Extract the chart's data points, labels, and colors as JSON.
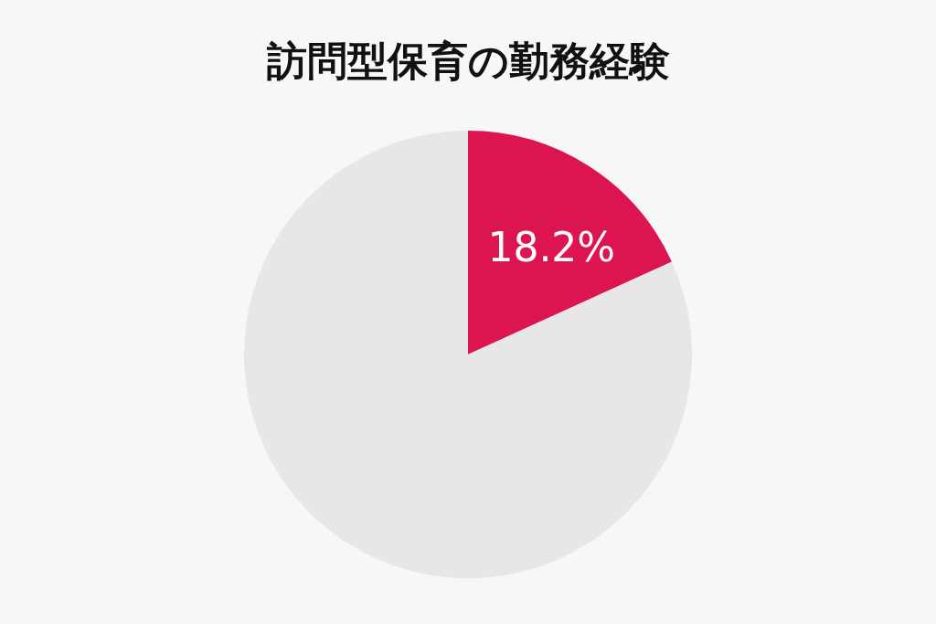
{
  "chart_data": {
    "type": "pie",
    "title": "訪問型保育の勤務経験",
    "categories": [
      null,
      null
    ],
    "values": [
      18.2,
      81.8
    ],
    "colors": [
      "#dc1450",
      "#e8e6e7"
    ],
    "value_labels": [
      "18.2%",
      null
    ]
  }
}
